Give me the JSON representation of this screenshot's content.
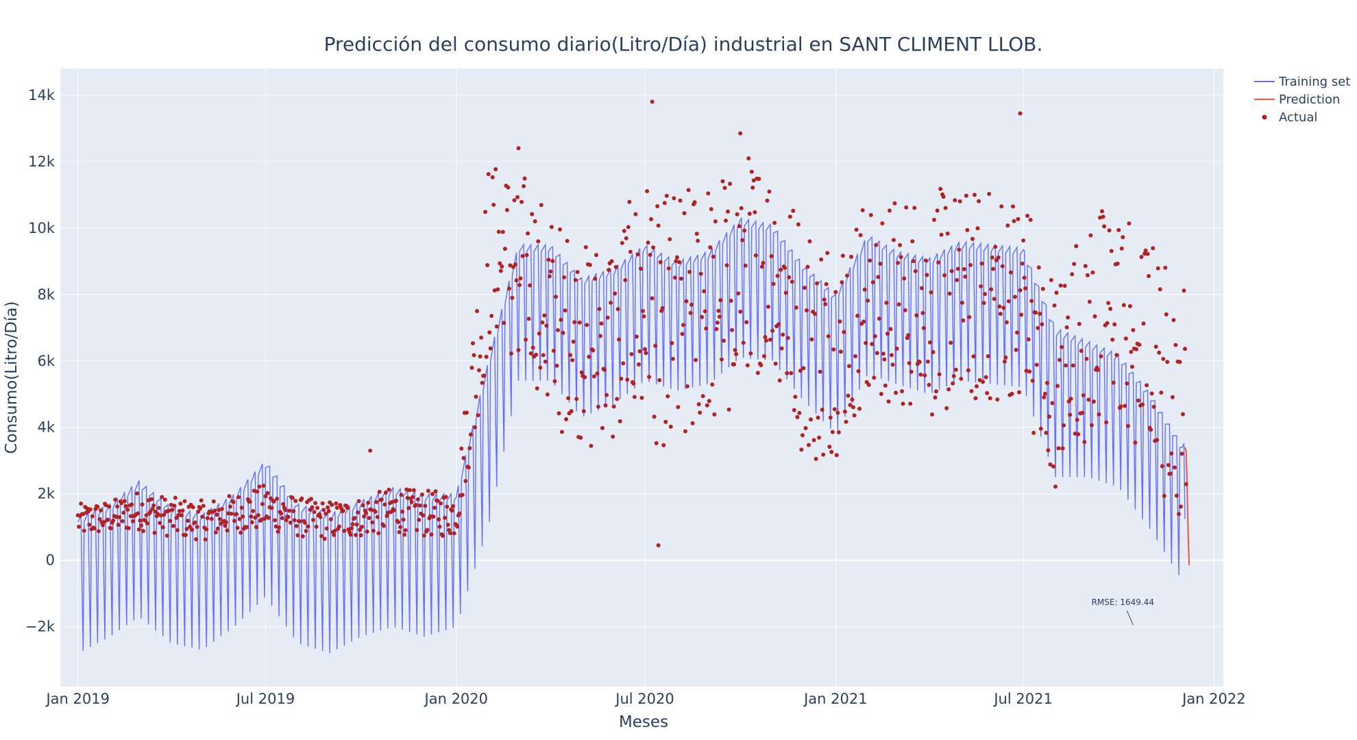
{
  "chart_data": {
    "type": "line",
    "title": "Predicción del consumo diario(Litro/Día) industrial en SANT CLIMENT LLOB.",
    "xlabel": "Meses",
    "ylabel": "Consumo(Litro/Día)",
    "x_range": [
      "2018-12-15",
      "2022-01-10"
    ],
    "ylim": [
      -3800,
      14800
    ],
    "x_ticks": [
      {
        "date": "2019-01-01",
        "label": "Jan 2019"
      },
      {
        "date": "2019-07-01",
        "label": "Jul 2019"
      },
      {
        "date": "2020-01-01",
        "label": "Jan 2020"
      },
      {
        "date": "2020-07-01",
        "label": "Jul 2020"
      },
      {
        "date": "2021-01-01",
        "label": "Jan 2021"
      },
      {
        "date": "2021-07-01",
        "label": "Jul 2021"
      },
      {
        "date": "2022-01-01",
        "label": "Jan 2022"
      }
    ],
    "y_ticks": [
      {
        "value": -2000,
        "label": "−2k"
      },
      {
        "value": 0,
        "label": "0"
      },
      {
        "value": 2000,
        "label": "2k"
      },
      {
        "value": 4000,
        "label": "4k"
      },
      {
        "value": 6000,
        "label": "6k"
      },
      {
        "value": 8000,
        "label": "8k"
      },
      {
        "value": 10000,
        "label": "10k"
      },
      {
        "value": 12000,
        "label": "12k"
      },
      {
        "value": 14000,
        "label": "14k"
      }
    ],
    "grid": true,
    "legend": "top-right",
    "colors": {
      "training": "#636efa",
      "prediction": "#ef553b",
      "actual": "#b22222",
      "plot_bg": "#e5ecf6",
      "grid": "#ffffff"
    },
    "series": [
      {
        "name": "Training set",
        "mode": "line",
        "weekly_pattern": "weekday values near envelope_high, weekend dips near envelope_low",
        "envelope_high": [
          {
            "x": "2019-01-01",
            "y": 1300
          },
          {
            "x": "2019-02-01",
            "y": 1700
          },
          {
            "x": "2019-03-01",
            "y": 2400
          },
          {
            "x": "2019-04-01",
            "y": 1600
          },
          {
            "x": "2019-05-01",
            "y": 1400
          },
          {
            "x": "2019-06-01",
            "y": 2000
          },
          {
            "x": "2019-07-01",
            "y": 3000
          },
          {
            "x": "2019-08-01",
            "y": 1700
          },
          {
            "x": "2019-09-01",
            "y": 1400
          },
          {
            "x": "2019-10-01",
            "y": 1800
          },
          {
            "x": "2019-11-01",
            "y": 2200
          },
          {
            "x": "2019-12-01",
            "y": 2000
          },
          {
            "x": "2020-01-01",
            "y": 2000
          },
          {
            "x": "2020-02-01",
            "y": 6000
          },
          {
            "x": "2020-03-01",
            "y": 9500
          },
          {
            "x": "2020-04-01",
            "y": 9500
          },
          {
            "x": "2020-05-01",
            "y": 8500
          },
          {
            "x": "2020-06-01",
            "y": 8800
          },
          {
            "x": "2020-07-01",
            "y": 9500
          },
          {
            "x": "2020-08-01",
            "y": 9000
          },
          {
            "x": "2020-09-01",
            "y": 9300
          },
          {
            "x": "2020-10-01",
            "y": 10300
          },
          {
            "x": "2020-11-01",
            "y": 10100
          },
          {
            "x": "2020-12-01",
            "y": 8900
          },
          {
            "x": "2021-01-01",
            "y": 8000
          },
          {
            "x": "2021-02-01",
            "y": 9800
          },
          {
            "x": "2021-03-01",
            "y": 9300
          },
          {
            "x": "2021-04-01",
            "y": 9100
          },
          {
            "x": "2021-05-01",
            "y": 9600
          },
          {
            "x": "2021-06-01",
            "y": 9500
          },
          {
            "x": "2021-07-01",
            "y": 9400
          },
          {
            "x": "2021-08-01",
            "y": 7000
          },
          {
            "x": "2021-09-01",
            "y": 6600
          },
          {
            "x": "2021-10-01",
            "y": 6200
          },
          {
            "x": "2021-11-01",
            "y": 5000
          },
          {
            "x": "2021-12-01",
            "y": 3500
          }
        ],
        "envelope_low": [
          {
            "x": "2019-01-01",
            "y": -2800
          },
          {
            "x": "2019-02-01",
            "y": -2300
          },
          {
            "x": "2019-03-01",
            "y": -1700
          },
          {
            "x": "2019-04-01",
            "y": -2500
          },
          {
            "x": "2019-05-01",
            "y": -2700
          },
          {
            "x": "2019-06-01",
            "y": -2000
          },
          {
            "x": "2019-07-01",
            "y": -1100
          },
          {
            "x": "2019-08-01",
            "y": -2500
          },
          {
            "x": "2019-09-01",
            "y": -2800
          },
          {
            "x": "2019-10-01",
            "y": -2300
          },
          {
            "x": "2019-11-01",
            "y": -2000
          },
          {
            "x": "2019-12-01",
            "y": -2300
          },
          {
            "x": "2020-01-01",
            "y": -2000
          },
          {
            "x": "2020-02-01",
            "y": 1000
          },
          {
            "x": "2020-03-01",
            "y": 5400
          },
          {
            "x": "2020-04-01",
            "y": 5400
          },
          {
            "x": "2020-05-01",
            "y": 4300
          },
          {
            "x": "2020-06-01",
            "y": 4700
          },
          {
            "x": "2020-07-01",
            "y": 5400
          },
          {
            "x": "2020-08-01",
            "y": 5100
          },
          {
            "x": "2020-09-01",
            "y": 5300
          },
          {
            "x": "2020-10-01",
            "y": 6100
          },
          {
            "x": "2020-11-01",
            "y": 6000
          },
          {
            "x": "2020-12-01",
            "y": 4800
          },
          {
            "x": "2021-01-01",
            "y": 3800
          },
          {
            "x": "2021-02-01",
            "y": 5600
          },
          {
            "x": "2021-03-01",
            "y": 5300
          },
          {
            "x": "2021-04-01",
            "y": 5000
          },
          {
            "x": "2021-05-01",
            "y": 5400
          },
          {
            "x": "2021-06-01",
            "y": 5300
          },
          {
            "x": "2021-07-01",
            "y": 5200
          },
          {
            "x": "2021-08-01",
            "y": 2500
          },
          {
            "x": "2021-09-01",
            "y": 2500
          },
          {
            "x": "2021-10-01",
            "y": 2200
          },
          {
            "x": "2021-11-01",
            "y": 900
          },
          {
            "x": "2021-12-01",
            "y": -600
          }
        ]
      },
      {
        "name": "Prediction",
        "mode": "line",
        "points": [
          {
            "x": "2021-12-04",
            "y": 3400
          },
          {
            "x": "2021-12-05",
            "y": 3300
          },
          {
            "x": "2021-12-06",
            "y": 2300
          },
          {
            "x": "2021-12-07",
            "y": 800
          },
          {
            "x": "2021-12-08",
            "y": -150
          }
        ]
      },
      {
        "name": "Actual",
        "mode": "markers",
        "level_by_month": [
          {
            "x": "2019-01-01",
            "mid": 1200,
            "spread": 500
          },
          {
            "x": "2019-02-01",
            "mid": 1300,
            "spread": 500
          },
          {
            "x": "2019-03-01",
            "mid": 1500,
            "spread": 600
          },
          {
            "x": "2019-04-01",
            "mid": 1300,
            "spread": 600
          },
          {
            "x": "2019-05-01",
            "mid": 1200,
            "spread": 600
          },
          {
            "x": "2019-06-01",
            "mid": 1400,
            "spread": 600
          },
          {
            "x": "2019-07-01",
            "mid": 1600,
            "spread": 700
          },
          {
            "x": "2019-08-01",
            "mid": 1300,
            "spread": 600
          },
          {
            "x": "2019-09-01",
            "mid": 1200,
            "spread": 600
          },
          {
            "x": "2019-10-01",
            "mid": 1300,
            "spread": 600
          },
          {
            "x": "2019-11-01",
            "mid": 1500,
            "spread": 700
          },
          {
            "x": "2019-12-01",
            "mid": 1400,
            "spread": 700
          },
          {
            "x": "2020-01-01",
            "mid": 1400,
            "spread": 700
          },
          {
            "x": "2020-02-01",
            "mid": 9000,
            "spread": 3000
          },
          {
            "x": "2020-03-01",
            "mid": 9000,
            "spread": 3000
          },
          {
            "x": "2020-04-01",
            "mid": 7500,
            "spread": 3000
          },
          {
            "x": "2020-05-01",
            "mid": 6500,
            "spread": 3000
          },
          {
            "x": "2020-06-01",
            "mid": 7000,
            "spread": 3000
          },
          {
            "x": "2020-07-01",
            "mid": 8000,
            "spread": 3600
          },
          {
            "x": "2020-08-01",
            "mid": 7500,
            "spread": 3600
          },
          {
            "x": "2020-09-01",
            "mid": 8000,
            "spread": 3600
          },
          {
            "x": "2020-10-01",
            "mid": 9000,
            "spread": 3400
          },
          {
            "x": "2020-11-01",
            "mid": 9000,
            "spread": 3000
          },
          {
            "x": "2020-12-01",
            "mid": 7000,
            "spread": 3400
          },
          {
            "x": "2021-01-01",
            "mid": 6500,
            "spread": 3400
          },
          {
            "x": "2021-02-01",
            "mid": 8000,
            "spread": 3000
          },
          {
            "x": "2021-03-01",
            "mid": 8000,
            "spread": 3000
          },
          {
            "x": "2021-04-01",
            "mid": 8000,
            "spread": 3200
          },
          {
            "x": "2021-05-01",
            "mid": 8000,
            "spread": 3200
          },
          {
            "x": "2021-06-01",
            "mid": 8000,
            "spread": 3200
          },
          {
            "x": "2021-07-01",
            "mid": 8000,
            "spread": 3200
          },
          {
            "x": "2021-08-01",
            "mid": 5500,
            "spread": 3000
          },
          {
            "x": "2021-09-01",
            "mid": 7500,
            "spread": 3200
          },
          {
            "x": "2021-10-01",
            "mid": 7500,
            "spread": 3200
          },
          {
            "x": "2021-11-01",
            "mid": 6500,
            "spread": 3200
          },
          {
            "x": "2021-12-01",
            "mid": 5000,
            "spread": 3500
          }
        ],
        "outliers": [
          {
            "x": "2020-07-08",
            "y": 13800
          },
          {
            "x": "2020-07-14",
            "y": 450
          },
          {
            "x": "2021-06-28",
            "y": 13450
          },
          {
            "x": "2019-10-10",
            "y": 3300
          },
          {
            "x": "2020-03-01",
            "y": 12400
          },
          {
            "x": "2020-10-01",
            "y": 12850
          }
        ]
      }
    ],
    "annotations": [
      {
        "text": "RMSE: 1649.44",
        "x": "2021-10-05",
        "y": -1350,
        "arrow_to": {
          "x": "2021-10-15",
          "y": -1950
        }
      }
    ]
  }
}
